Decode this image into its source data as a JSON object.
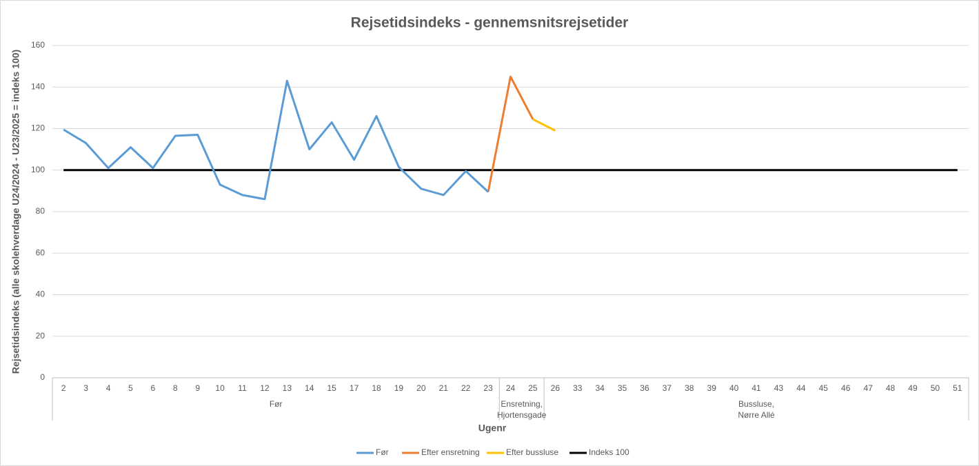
{
  "chart_data": {
    "type": "line",
    "title": "Rejsetidsindeks - gennemsnitsrejsetider",
    "y_label": "Rejsetidsindeks (alle skolehverdage U24/2024 - U23/2025 = indeks 100)",
    "x_label": "Ugenr",
    "categories": [
      "2",
      "3",
      "4",
      "5",
      "6",
      "8",
      "9",
      "10",
      "11",
      "12",
      "13",
      "14",
      "15",
      "17",
      "18",
      "19",
      "20",
      "21",
      "22",
      "23",
      "24",
      "25",
      "26",
      "33",
      "34",
      "35",
      "36",
      "37",
      "38",
      "39",
      "40",
      "41",
      "43",
      "44",
      "45",
      "46",
      "47",
      "48",
      "49",
      "50",
      "51"
    ],
    "groups": [
      {
        "label": [
          "Før"
        ],
        "start": 0,
        "end": 19
      },
      {
        "label": [
          "Ensretning,",
          "Hjortensgade"
        ],
        "start": 20,
        "end": 21
      },
      {
        "label": [
          "Bussluse,",
          "Nørre Allé"
        ],
        "start": 22,
        "end": 40
      }
    ],
    "series": [
      {
        "name": "Før",
        "color": "#5b9bd5",
        "values": [
          119.5,
          113,
          101,
          111,
          101,
          116.5,
          117,
          93,
          88,
          86,
          143,
          110,
          123,
          105,
          126,
          101.5,
          91,
          88,
          99.5,
          89.5,
          null,
          null,
          null,
          null,
          null,
          null,
          null,
          null,
          null,
          null,
          null,
          null,
          null,
          null,
          null,
          null,
          null,
          null,
          null,
          null,
          null
        ]
      },
      {
        "name": "Efter ensretning",
        "color": "#ed7d31",
        "values": [
          null,
          null,
          null,
          null,
          null,
          null,
          null,
          null,
          null,
          null,
          null,
          null,
          null,
          null,
          null,
          null,
          null,
          null,
          null,
          89.5,
          145,
          124.5,
          null,
          null,
          null,
          null,
          null,
          null,
          null,
          null,
          null,
          null,
          null,
          null,
          null,
          null,
          null,
          null,
          null,
          null,
          null
        ]
      },
      {
        "name": "Efter bussluse",
        "color": "#ffc000",
        "values": [
          null,
          null,
          null,
          null,
          null,
          null,
          null,
          null,
          null,
          null,
          null,
          null,
          null,
          null,
          null,
          null,
          null,
          null,
          null,
          null,
          null,
          124.5,
          119,
          null,
          null,
          null,
          null,
          null,
          null,
          null,
          null,
          null,
          null,
          null,
          null,
          null,
          null,
          null,
          null,
          null,
          null
        ]
      },
      {
        "name": "Indeks 100",
        "color": "#000000",
        "values": [
          100,
          100,
          100,
          100,
          100,
          100,
          100,
          100,
          100,
          100,
          100,
          100,
          100,
          100,
          100,
          100,
          100,
          100,
          100,
          100,
          100,
          100,
          100,
          100,
          100,
          100,
          100,
          100,
          100,
          100,
          100,
          100,
          100,
          100,
          100,
          100,
          100,
          100,
          100,
          100,
          100
        ]
      }
    ],
    "ylim": [
      0,
      160
    ],
    "yticks": [
      0,
      20,
      40,
      60,
      80,
      100,
      120,
      140,
      160
    ],
    "grid": true,
    "legend": "bottom"
  }
}
